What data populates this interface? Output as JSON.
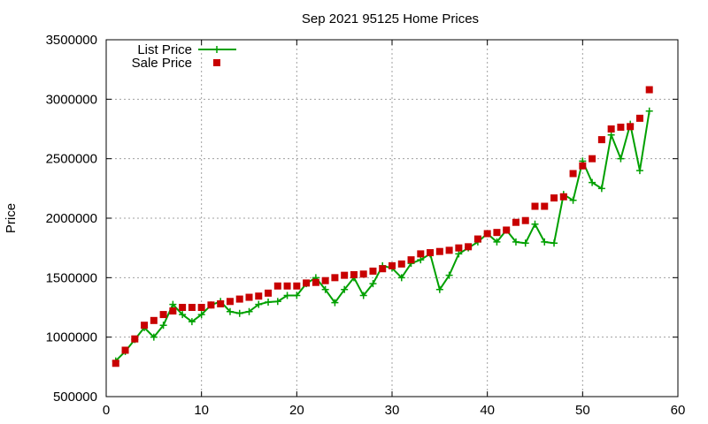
{
  "chart_data": {
    "type": "line",
    "title": "Sep 2021 95125 Home Prices",
    "ylabel": "Price",
    "xlabel": "",
    "xlim": [
      0,
      60
    ],
    "ylim": [
      500000,
      3500000
    ],
    "x_ticks": [
      0,
      10,
      20,
      30,
      40,
      50,
      60
    ],
    "y_ticks": [
      500000,
      1000000,
      1500000,
      2000000,
      2500000,
      3000000,
      3500000
    ],
    "grid": true,
    "legend_position": "top-left",
    "series": [
      {
        "name": "List Price",
        "style": "line-plus",
        "color": "#00a000",
        "x": [
          1,
          2,
          3,
          4,
          5,
          6,
          7,
          8,
          9,
          10,
          11,
          12,
          13,
          14,
          15,
          16,
          17,
          18,
          19,
          20,
          21,
          22,
          23,
          24,
          25,
          26,
          27,
          28,
          29,
          30,
          31,
          32,
          33,
          34,
          35,
          36,
          37,
          38,
          39,
          40,
          41,
          42,
          43,
          44,
          45,
          46,
          47,
          48,
          49,
          50,
          51,
          52,
          53,
          54,
          55,
          56,
          57
        ],
        "values": [
          800000,
          880000,
          980000,
          1080000,
          1000000,
          1100000,
          1275000,
          1190000,
          1130000,
          1190000,
          1270000,
          1300000,
          1215000,
          1200000,
          1215000,
          1275000,
          1295000,
          1300000,
          1350000,
          1350000,
          1450000,
          1500000,
          1400000,
          1290000,
          1400000,
          1500000,
          1350000,
          1450000,
          1600000,
          1580000,
          1500000,
          1620000,
          1650000,
          1700000,
          1400000,
          1520000,
          1700000,
          1750000,
          1800000,
          1870000,
          1800000,
          1900000,
          1800000,
          1790000,
          1950000,
          1800000,
          1790000,
          2200000,
          2150000,
          2480000,
          2300000,
          2250000,
          2700000,
          2500000,
          2790000,
          2400000,
          2900000
        ]
      },
      {
        "name": "Sale Price",
        "style": "square",
        "color": "#c80000",
        "x": [
          1,
          2,
          3,
          4,
          5,
          6,
          7,
          8,
          9,
          10,
          11,
          12,
          13,
          14,
          15,
          16,
          17,
          18,
          19,
          20,
          21,
          22,
          23,
          24,
          25,
          26,
          27,
          28,
          29,
          30,
          31,
          32,
          33,
          34,
          35,
          36,
          37,
          38,
          39,
          40,
          41,
          42,
          43,
          44,
          45,
          46,
          47,
          48,
          49,
          50,
          51,
          52,
          53,
          54,
          55,
          56,
          57
        ],
        "values": [
          780000,
          890000,
          985000,
          1100000,
          1140000,
          1190000,
          1220000,
          1250000,
          1250000,
          1250000,
          1270000,
          1280000,
          1300000,
          1320000,
          1335000,
          1345000,
          1370000,
          1430000,
          1430000,
          1430000,
          1455000,
          1460000,
          1475000,
          1500000,
          1520000,
          1525000,
          1530000,
          1555000,
          1575000,
          1600000,
          1615000,
          1650000,
          1700000,
          1710000,
          1720000,
          1730000,
          1750000,
          1760000,
          1825000,
          1870000,
          1880000,
          1900000,
          1965000,
          1980000,
          2100000,
          2100000,
          2170000,
          2180000,
          2375000,
          2440000,
          2500000,
          2660000,
          2750000,
          2765000,
          2770000,
          2840000,
          3080000
        ]
      }
    ]
  }
}
